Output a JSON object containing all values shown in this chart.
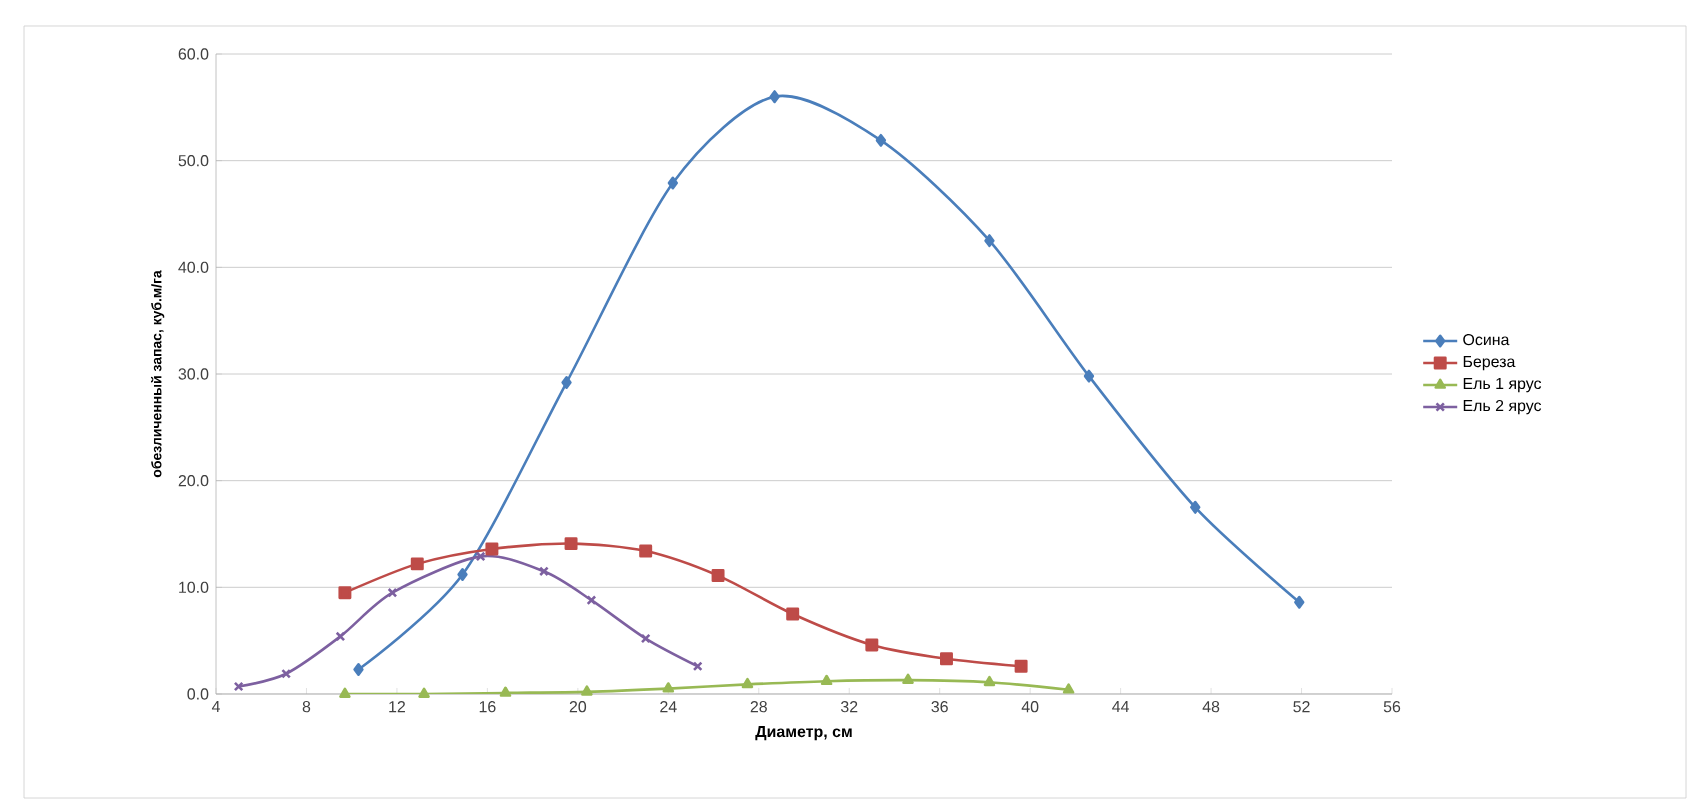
{
  "chart_data": {
    "type": "line",
    "xlabel": "Диаметр, см",
    "ylabel": "обезличенный запас, куб.м/га",
    "xlim": [
      4,
      56
    ],
    "xticks": [
      4,
      8,
      12,
      16,
      20,
      24,
      28,
      32,
      36,
      40,
      44,
      48,
      52,
      56
    ],
    "ylim": [
      0,
      60
    ],
    "yticks": [
      {
        "value": 0,
        "label": "0.0"
      },
      {
        "value": 10,
        "label": "10.0"
      },
      {
        "value": 20,
        "label": "20.0"
      },
      {
        "value": 30,
        "label": "30.0"
      },
      {
        "value": 40,
        "label": "40.0"
      },
      {
        "value": 50,
        "label": "50.0"
      },
      {
        "value": 60,
        "label": "60.0"
      }
    ],
    "grid": "y",
    "legend": "right",
    "series": [
      {
        "name": "Осина",
        "color": "#4a7ebb",
        "marker": "diamond",
        "x": [
          10.3,
          14.9,
          19.5,
          24.2,
          28.7,
          33.4,
          38.2,
          42.6,
          47.3,
          51.9
        ],
        "values": [
          2.3,
          11.2,
          29.2,
          47.9,
          56.0,
          51.9,
          42.5,
          29.8,
          17.5,
          8.6
        ]
      },
      {
        "name": "Береза",
        "color": "#be4b48",
        "marker": "square",
        "x": [
          9.7,
          12.9,
          16.2,
          19.7,
          23.0,
          26.2,
          29.5,
          33.0,
          36.3,
          39.6
        ],
        "values": [
          9.5,
          12.2,
          13.6,
          14.1,
          13.4,
          11.1,
          7.5,
          4.6,
          3.3,
          2.6
        ]
      },
      {
        "name": "Ель 1 ярус",
        "color": "#98b954",
        "marker": "triangle",
        "x": [
          9.7,
          13.2,
          16.8,
          20.4,
          24.0,
          27.5,
          31.0,
          34.6,
          38.2,
          41.7
        ],
        "values": [
          0.0,
          0.0,
          0.1,
          0.2,
          0.5,
          0.9,
          1.2,
          1.3,
          1.1,
          0.4
        ]
      },
      {
        "name": "Ель 2 ярус",
        "color": "#7d60a0",
        "marker": "cross",
        "x": [
          5.0,
          7.1,
          9.5,
          11.8,
          15.7,
          18.5,
          20.6,
          23.0,
          25.3
        ],
        "values": [
          0.7,
          1.9,
          5.4,
          9.5,
          12.9,
          11.5,
          8.8,
          5.2,
          2.6
        ]
      }
    ]
  }
}
